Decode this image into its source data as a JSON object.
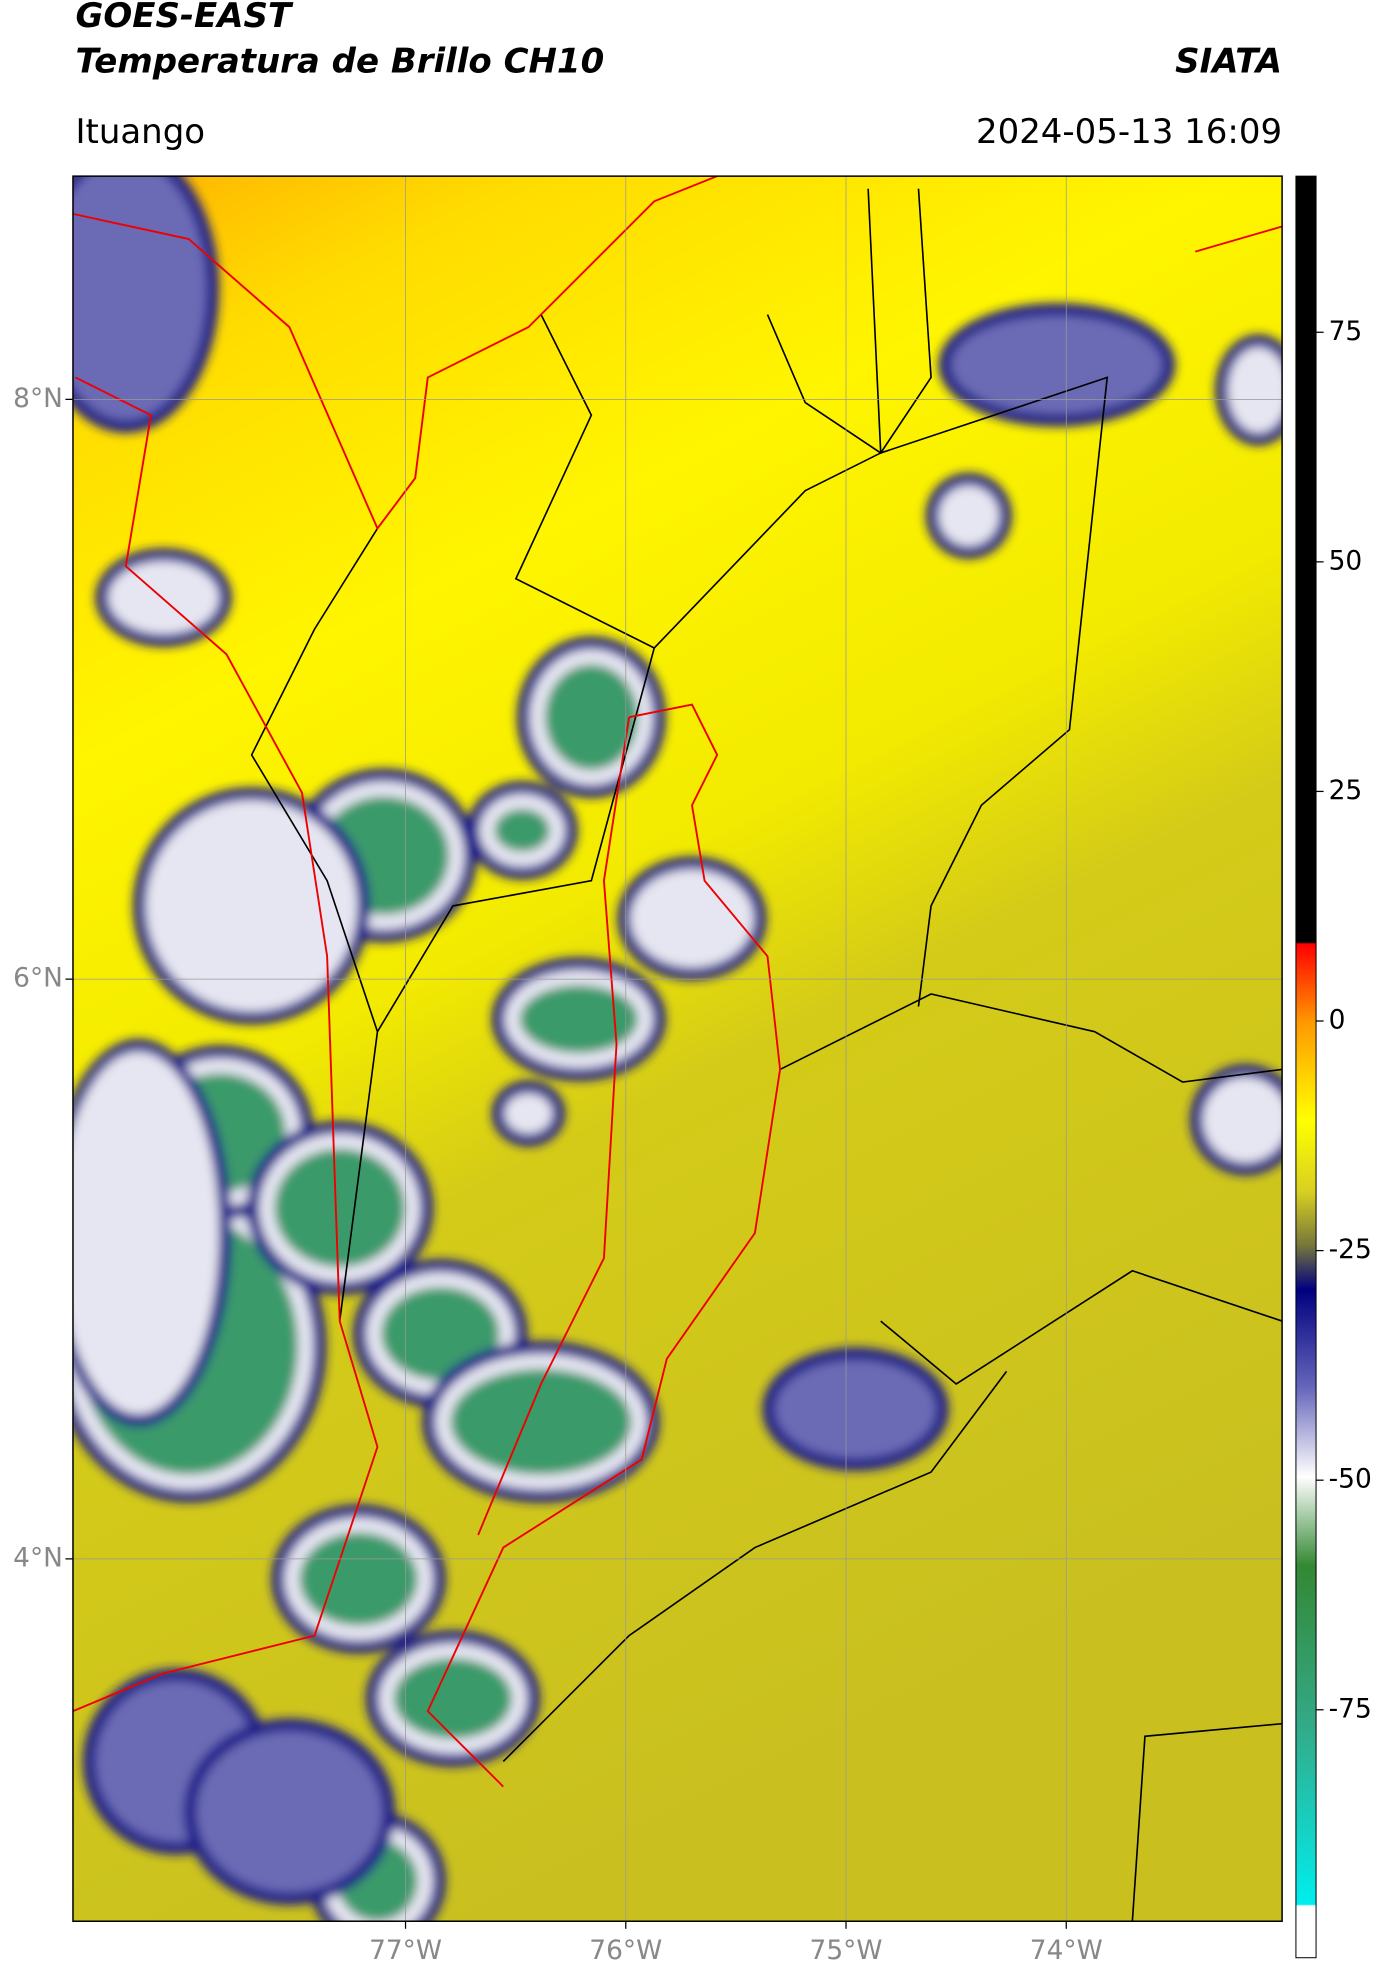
{
  "header": {
    "title": "GOES-EAST",
    "subtitle": "Temperatura de Brillo CH10",
    "source": "SIATA",
    "location": "Ituango",
    "datetime": "2024-05-13 16:09"
  },
  "map": {
    "xlim": [
      -78.51,
      -73.02
    ],
    "ylim": [
      2.75,
      8.77
    ],
    "xticks": [
      {
        "value": -77,
        "label": "77°W"
      },
      {
        "value": -76,
        "label": "76°W"
      },
      {
        "value": -75,
        "label": "75°W"
      },
      {
        "value": -74,
        "label": "74°W"
      }
    ],
    "yticks": [
      {
        "value": 8,
        "label": "8°N"
      },
      {
        "value": 6,
        "label": "6°N"
      },
      {
        "value": 4,
        "label": "4°N"
      }
    ],
    "grid": true
  },
  "colorbar": {
    "lim": [
      -102,
      92
    ],
    "ticks": [
      75,
      50,
      25,
      0,
      -25,
      -50,
      -75
    ]
  }
}
